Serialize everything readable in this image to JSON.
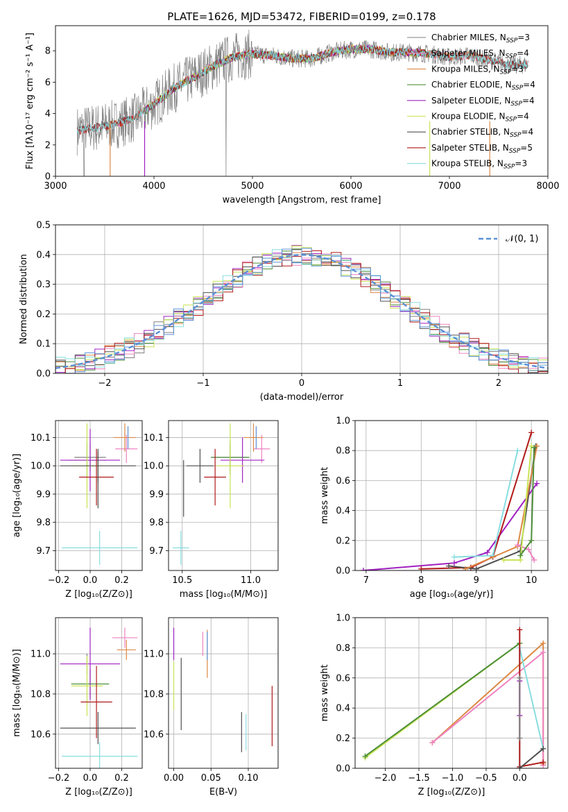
{
  "colors": {
    "chabrier_miles": "#808080",
    "salpeter_miles": "#ee82c0",
    "kroupa_miles": "#dd8844",
    "chabrier_elodie": "#4e8f3a",
    "salpeter_elodie": "#a020c0",
    "kroupa_elodie": "#c8e455",
    "chabrier_stelib": "#505050",
    "salpeter_stelib": "#b01818",
    "kroupa_stelib": "#88dde0",
    "gaussian": "#5b8fd6",
    "extra_blue": "#5b8fd6"
  },
  "chart_data": [
    {
      "id": "spectrum",
      "type": "line",
      "title": "PLATE=1626, MJD=53472, FIBERID=0199, z=0.178",
      "xlabel": "wavelength [Angstrom, rest frame]",
      "ylabel": "Flux [fλ10⁻¹⁷ erg cm⁻² s⁻¹ A⁻¹]",
      "xlim": [
        3000,
        8000
      ],
      "ylim": [
        0,
        9.6
      ],
      "xticks": [
        "3000",
        "4000",
        "5000",
        "6000",
        "7000",
        "8000"
      ],
      "yticks": [
        "0",
        "2",
        "4",
        "6",
        "8"
      ],
      "legend_position": "right",
      "legend": [
        {
          "key": "chabrier_miles",
          "label": "Chabrier MILES, N",
          "sub": "SSP",
          "suffix": "=3"
        },
        {
          "key": "salpeter_miles",
          "label": "Salpeter MILES, N",
          "sub": "SSP",
          "suffix": "=4"
        },
        {
          "key": "kroupa_miles",
          "label": "Kroupa MILES, N",
          "sub": "SSP",
          "suffix": "=3"
        },
        {
          "key": "chabrier_elodie",
          "label": "Chabrier ELODIE, N",
          "sub": "SSP",
          "suffix": "=4"
        },
        {
          "key": "salpeter_elodie",
          "label": "Salpeter ELODIE, N",
          "sub": "SSP",
          "suffix": "=4"
        },
        {
          "key": "kroupa_elodie",
          "label": "Kroupa ELODIE, N",
          "sub": "SSP",
          "suffix": "=4"
        },
        {
          "key": "chabrier_stelib",
          "label": "Chabrier STELIB, N",
          "sub": "SSP",
          "suffix": "=4"
        },
        {
          "key": "salpeter_stelib",
          "label": "Salpeter STELIB, N",
          "sub": "SSP",
          "suffix": "=5"
        },
        {
          "key": "kroupa_stelib",
          "label": "Kroupa STELIB, N",
          "sub": "SSP",
          "suffix": "=3"
        }
      ],
      "continuum_x": [
        3200,
        3400,
        3600,
        3800,
        4000,
        4200,
        4400,
        4600,
        4800,
        5000,
        5200,
        5400,
        5600,
        5800,
        6000,
        6200,
        6400,
        6600,
        6800,
        7000,
        7200,
        7400,
        7600,
        7800
      ],
      "continuum_y": [
        2.9,
        3.1,
        3.3,
        3.7,
        4.6,
        5.6,
        6.3,
        7.0,
        7.6,
        7.8,
        7.7,
        7.5,
        7.5,
        7.9,
        8.1,
        8.1,
        7.9,
        7.9,
        7.8,
        7.6,
        7.7,
        7.4,
        7.1,
        7.1
      ]
    },
    {
      "id": "residuals",
      "type": "histogram",
      "xlabel": "(data-model)/error",
      "ylabel": "Normed distribution",
      "xlim": [
        -2.5,
        2.5
      ],
      "ylim": [
        0,
        0.5
      ],
      "xticks": [
        "-2",
        "-1",
        "0",
        "1",
        "2"
      ],
      "yticks": [
        "0.0",
        "0.1",
        "0.2",
        "0.3",
        "0.4",
        "0.5"
      ],
      "legend": [
        "𝒩(0, 1)"
      ],
      "bin_width": 0.1
    },
    {
      "id": "age_vs_Z",
      "type": "errorbar",
      "xlabel": "Z [log₁₀(Z/Z⊙)]",
      "ylabel": "age  [log₁₀(age/yr)]",
      "xlim": [
        -0.22,
        0.33
      ],
      "ylim": [
        9.63,
        10.16
      ],
      "xticks": [
        "-0.2",
        "0.0",
        "0.2"
      ],
      "yticks": [
        "9.7",
        "9.8",
        "9.9",
        "10.0",
        "10.1"
      ],
      "points": [
        {
          "key": "chabrier_miles",
          "x": 0.0,
          "y": 10.03,
          "xe": 0.1,
          "ye": 0.05
        },
        {
          "key": "salpeter_miles",
          "x": 0.23,
          "y": 10.06,
          "xe": 0.07,
          "ye": 0.05
        },
        {
          "key": "kroupa_miles",
          "x": 0.22,
          "y": 10.1,
          "xe": 0.07,
          "ye": 0.05
        },
        {
          "key": "chabrier_elodie",
          "x": -0.02,
          "y": 10.02,
          "xe": 0.12,
          "ye": 0.06
        },
        {
          "key": "salpeter_elodie",
          "x": 0.0,
          "y": 10.02,
          "xe": 0.19,
          "ye": 0.11
        },
        {
          "key": "kroupa_elodie",
          "x": -0.02,
          "y": 10.0,
          "xe": 0.1,
          "ye": 0.15
        },
        {
          "key": "chabrier_stelib",
          "x": 0.05,
          "y": 10.0,
          "xe": 0.24,
          "ye": 0.06
        },
        {
          "key": "salpeter_stelib",
          "x": 0.04,
          "y": 9.96,
          "xe": 0.11,
          "ye": 0.1
        },
        {
          "key": "kroupa_stelib",
          "x": 0.06,
          "y": 9.71,
          "xe": 0.24,
          "ye": 0.06
        },
        {
          "key": "extra_blue",
          "x": 0.24,
          "y": 10.1,
          "xe": 0.0,
          "ye": 0.04
        },
        {
          "key": "chabrier_stelib",
          "x": 0.05,
          "y": 9.95,
          "xe": 0.0,
          "ye": 0.1
        }
      ]
    },
    {
      "id": "age_vs_mass",
      "type": "errorbar",
      "xlabel": "mass [log₁₀(M/M⊙)]",
      "ylabel": "",
      "xlim": [
        10.4,
        11.2
      ],
      "ylim": [
        9.63,
        10.16
      ],
      "xticks": [
        "10.5",
        "11.0"
      ],
      "yticks": [
        "9.7",
        "9.8",
        "9.9",
        "10.0",
        "10.1"
      ],
      "points": [
        {
          "key": "chabrier_miles",
          "x": 10.85,
          "y": 10.03,
          "xe": 0.14,
          "ye": 0.05
        },
        {
          "key": "salpeter_miles",
          "x": 11.08,
          "y": 10.06,
          "xe": 0.06,
          "ye": 0.05
        },
        {
          "key": "kroupa_miles",
          "x": 11.02,
          "y": 10.1,
          "xe": 0.07,
          "ye": 0.05
        },
        {
          "key": "chabrier_elodie",
          "x": 10.85,
          "y": 10.03,
          "xe": 0.14,
          "ye": 0.06
        },
        {
          "key": "salpeter_elodie",
          "x": 10.94,
          "y": 10.02,
          "xe": 0.16,
          "ye": 0.08
        },
        {
          "key": "kroupa_elodie",
          "x": 10.85,
          "y": 10.0,
          "xe": 0.1,
          "ye": 0.15
        },
        {
          "key": "chabrier_stelib",
          "x": 10.63,
          "y": 10.0,
          "xe": 0.1,
          "ye": 0.06
        },
        {
          "key": "salpeter_stelib",
          "x": 10.74,
          "y": 9.96,
          "xe": 0.08,
          "ye": 0.1
        },
        {
          "key": "kroupa_stelib",
          "x": 10.49,
          "y": 9.71,
          "xe": 0.06,
          "ye": 0.06
        },
        {
          "key": "extra_blue",
          "x": 11.04,
          "y": 10.1,
          "xe": 0.0,
          "ye": 0.04
        },
        {
          "key": "chabrier_stelib",
          "x": 10.51,
          "y": 9.92,
          "xe": 0.0,
          "ye": 0.1
        }
      ]
    },
    {
      "id": "massweight_vs_age",
      "type": "line",
      "xlabel": "age  [log₁₀(age/yr)]",
      "ylabel": "mass weight",
      "xlim": [
        6.8,
        10.3
      ],
      "ylim": [
        0,
        1.0
      ],
      "xticks": [
        "7",
        "8",
        "9",
        "10"
      ],
      "yticks": [
        "0.0",
        "0.2",
        "0.4",
        "0.6",
        "0.8",
        "1.0"
      ],
      "grid": true,
      "series": [
        {
          "key": "salpeter_elodie",
          "x": [
            6.95,
            8.6,
            9.2,
            10.1
          ],
          "y": [
            0.0,
            0.05,
            0.12,
            0.58
          ]
        },
        {
          "key": "salpeter_stelib",
          "x": [
            8.0,
            8.9,
            9.3,
            10.0
          ],
          "y": [
            0.01,
            0.02,
            0.09,
            0.92
          ]
        },
        {
          "key": "chabrier_stelib",
          "x": [
            8.5,
            9.0,
            9.8,
            10.08
          ],
          "y": [
            0.03,
            0.01,
            0.13,
            0.83
          ]
        },
        {
          "key": "kroupa_stelib",
          "x": [
            8.6,
            9.3,
            9.75
          ],
          "y": [
            0.09,
            0.1,
            0.8
          ]
        },
        {
          "key": "kroupa_miles",
          "x": [
            8.8,
            9.75,
            10.1
          ],
          "y": [
            0.01,
            0.16,
            0.83
          ]
        },
        {
          "key": "salpeter_miles",
          "x": [
            9.75,
            9.95,
            10.05
          ],
          "y": [
            0.17,
            0.14,
            0.07
          ]
        },
        {
          "key": "kroupa_elodie",
          "x": [
            9.5,
            9.8,
            10.0
          ],
          "y": [
            0.07,
            0.07,
            0.83
          ]
        },
        {
          "key": "chabrier_elodie",
          "x": [
            9.8,
            10.0,
            10.05
          ],
          "y": [
            0.1,
            0.2,
            0.82
          ]
        }
      ]
    },
    {
      "id": "mass_vs_Z",
      "type": "errorbar",
      "xlabel": "Z [log₁₀(Z/Z⊙)]",
      "ylabel": "mass [log₁₀(M/M⊙)]",
      "xlim": [
        -0.22,
        0.33
      ],
      "ylim": [
        10.43,
        11.18
      ],
      "xticks": [
        "-0.2",
        "0.0",
        "0.2"
      ],
      "yticks": [
        "10.6",
        "10.8",
        "11.0"
      ],
      "points": [
        {
          "key": "chabrier_miles",
          "x": -0.02,
          "y": 10.95,
          "xe": 0.0,
          "ye": 0.05
        },
        {
          "key": "salpeter_miles",
          "x": 0.22,
          "y": 11.08,
          "xe": 0.08,
          "ye": 0.05
        },
        {
          "key": "kroupa_miles",
          "x": 0.23,
          "y": 11.02,
          "xe": 0.06,
          "ye": 0.05
        },
        {
          "key": "chabrier_elodie",
          "x": 0.0,
          "y": 10.85,
          "xe": 0.12,
          "ye": 0.07
        },
        {
          "key": "salpeter_elodie",
          "x": 0.0,
          "y": 10.95,
          "xe": 0.19,
          "ye": 0.18
        },
        {
          "key": "kroupa_elodie",
          "x": -0.02,
          "y": 10.84,
          "xe": 0.1,
          "ye": 0.15
        },
        {
          "key": "chabrier_stelib",
          "x": 0.05,
          "y": 10.63,
          "xe": 0.24,
          "ye": 0.08
        },
        {
          "key": "salpeter_stelib",
          "x": 0.04,
          "y": 10.76,
          "xe": 0.1,
          "ye": 0.18
        },
        {
          "key": "kroupa_stelib",
          "x": 0.06,
          "y": 10.49,
          "xe": 0.24,
          "ye": 0.07
        },
        {
          "key": "extra_blue",
          "x": 0.23,
          "y": 11.04,
          "xe": 0.0,
          "ye": 0.0
        }
      ]
    },
    {
      "id": "mass_vs_ebv",
      "type": "errorbar",
      "xlabel": "E(B-V)",
      "ylabel": "",
      "xlim": [
        -0.007,
        0.14
      ],
      "ylim": [
        10.43,
        11.18
      ],
      "xticks": [
        "0.00",
        "0.05",
        "0.10"
      ],
      "yticks": [
        "10.6",
        "10.8",
        "11.0"
      ],
      "points": [
        {
          "key": "salpeter_elodie",
          "x": 0.0,
          "y": 11.05,
          "xe": 0.0,
          "ye": 0.08
        },
        {
          "key": "kroupa_elodie",
          "x": 0.0,
          "y": 10.84,
          "xe": 0.0,
          "ye": 0.12
        },
        {
          "key": "chabrier_stelib",
          "x": 0.01,
          "y": 10.8,
          "xe": 0.0,
          "ye": 0.18
        },
        {
          "key": "salpeter_miles",
          "x": 0.039,
          "y": 11.05,
          "xe": 0.0,
          "ye": 0.06
        },
        {
          "key": "kroupa_miles",
          "x": 0.045,
          "y": 11.0,
          "xe": 0.0,
          "ye": 0.12
        },
        {
          "key": "extra_blue",
          "x": 0.045,
          "y": 11.04,
          "xe": 0.0,
          "ye": 0.07
        },
        {
          "key": "chabrier_stelib",
          "x": 0.091,
          "y": 10.61,
          "xe": 0.0,
          "ye": 0.1
        },
        {
          "key": "kroupa_stelib",
          "x": 0.097,
          "y": 10.61,
          "xe": 0.0,
          "ye": 0.09
        },
        {
          "key": "salpeter_stelib",
          "x": 0.132,
          "y": 10.69,
          "xe": 0.0,
          "ye": 0.15
        }
      ]
    },
    {
      "id": "massweight_vs_Z",
      "type": "line",
      "xlabel": "Z [log₁₀(Z/Z⊙)]",
      "ylabel": "mass weight",
      "xlim": [
        -2.45,
        0.42
      ],
      "ylim": [
        0,
        1.0
      ],
      "xticks": [
        "-2.0",
        "-1.5",
        "-1.0",
        "-0.5",
        "0.0"
      ],
      "yticks": [
        "0.0",
        "0.2",
        "0.4",
        "0.6",
        "0.8",
        "1.0"
      ],
      "grid": true,
      "series": [
        {
          "key": "kroupa_elodie",
          "x": [
            -2.3,
            0.0
          ],
          "y": [
            0.07,
            0.83
          ]
        },
        {
          "key": "chabrier_elodie",
          "x": [
            -2.3,
            0.0
          ],
          "y": [
            0.08,
            0.83
          ]
        },
        {
          "key": "kroupa_miles",
          "x": [
            -1.3,
            0.35,
            0.35
          ],
          "y": [
            0.17,
            0.83,
            0.03
          ]
        },
        {
          "key": "salpeter_miles",
          "x": [
            -1.3,
            0.35,
            0.35
          ],
          "y": [
            0.17,
            0.77,
            0.02
          ]
        },
        {
          "key": "kroupa_stelib",
          "x": [
            0.0,
            0.0,
            0.35
          ],
          "y": [
            0.0,
            0.8,
            0.13
          ]
        },
        {
          "key": "salpeter_stelib",
          "x": [
            0.0,
            0.0,
            0.35
          ],
          "y": [
            0.92,
            0.01,
            0.04
          ]
        },
        {
          "key": "chabrier_stelib",
          "x": [
            0.0,
            0.35
          ],
          "y": [
            0.0,
            0.13
          ]
        },
        {
          "key": "salpeter_elodie",
          "x": [
            0.0,
            0.0
          ],
          "y": [
            0.35,
            0.58
          ]
        },
        {
          "key": "chabrier_miles",
          "x": [
            0.0,
            0.0
          ],
          "y": [
            0.2,
            0.6
          ]
        }
      ]
    }
  ]
}
